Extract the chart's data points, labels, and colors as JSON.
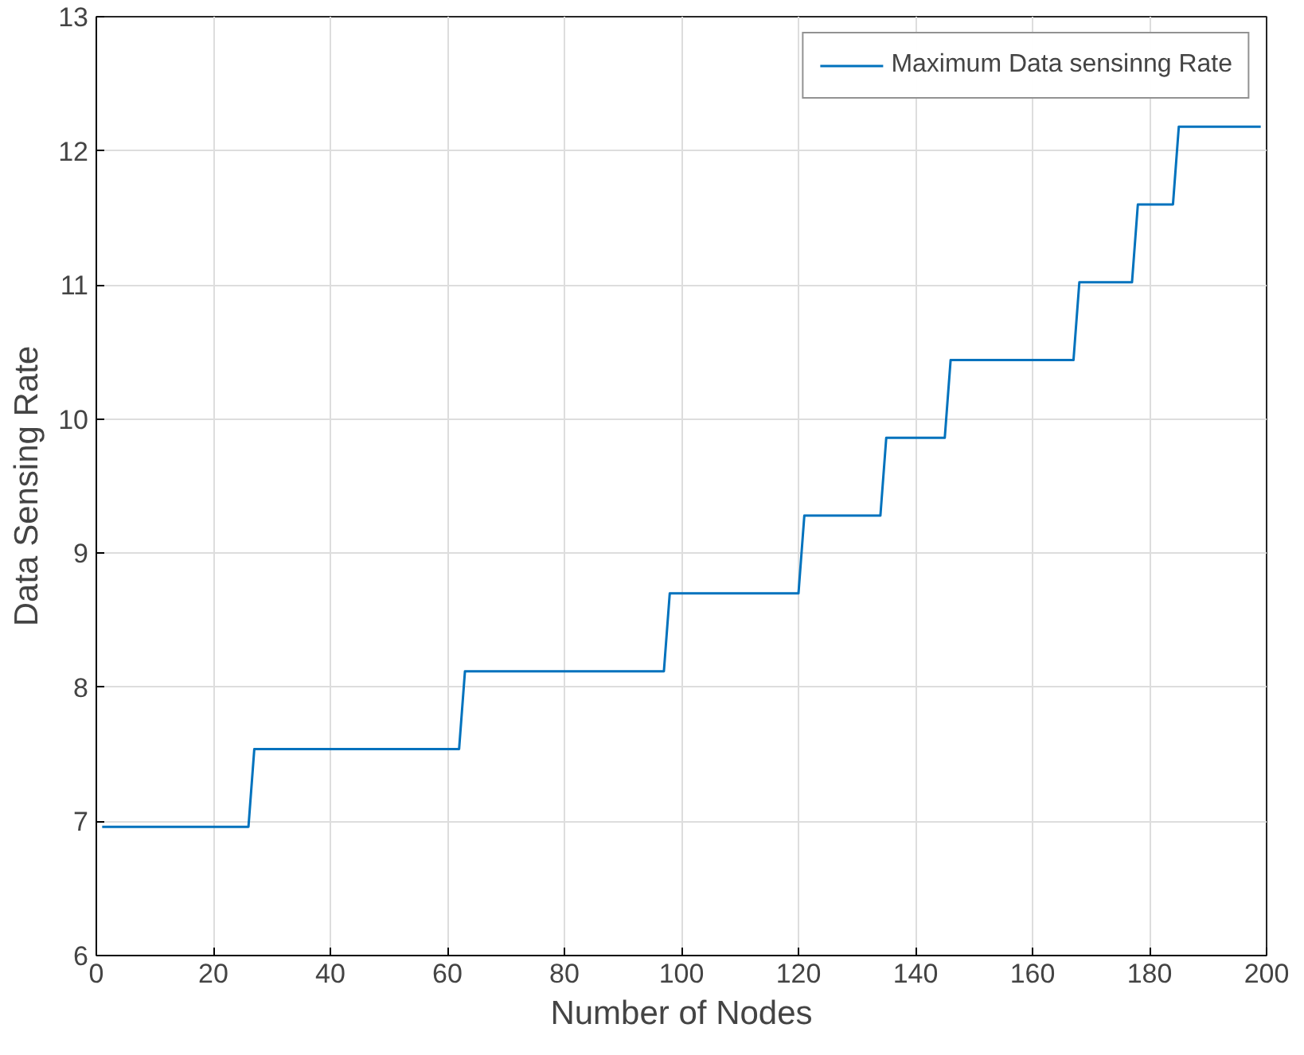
{
  "chart_data": {
    "type": "line",
    "xlabel": "Number of Nodes",
    "ylabel": "Data Sensing Rate",
    "x": [
      1,
      26,
      27,
      62,
      63,
      97,
      98,
      120,
      121,
      134,
      135,
      145,
      146,
      167,
      168,
      177,
      178,
      184,
      185,
      199
    ],
    "series": [
      {
        "name": "Maximum Data sensinng Rate",
        "color": "#0072bd",
        "values": [
          6.96,
          6.96,
          7.54,
          7.54,
          8.12,
          8.12,
          8.7,
          8.7,
          9.28,
          9.28,
          9.86,
          9.86,
          10.44,
          10.44,
          11.02,
          11.02,
          11.6,
          11.6,
          12.18,
          12.18
        ]
      }
    ],
    "xlim": [
      0,
      200
    ],
    "xticks": [
      0,
      20,
      40,
      60,
      80,
      100,
      120,
      140,
      160,
      180,
      200
    ],
    "ylim": [
      6,
      13
    ],
    "yticks": [
      6,
      7,
      8,
      9,
      10,
      11,
      12,
      13
    ],
    "grid": true,
    "legend": "top right",
    "line_style": "solid"
  }
}
